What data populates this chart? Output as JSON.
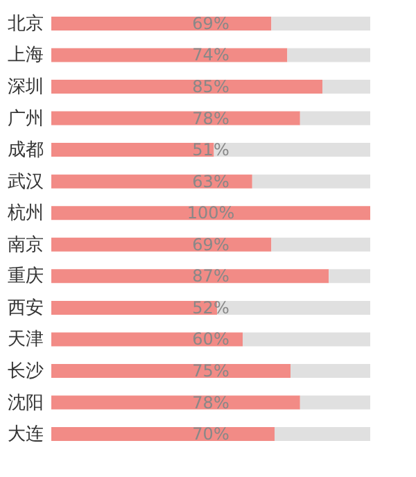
{
  "chart_data": {
    "type": "bar",
    "orientation": "horizontal",
    "stacked": true,
    "categories": [
      "北京",
      "上海",
      "深圳",
      "广州",
      "成都",
      "武汉",
      "杭州",
      "南京",
      "重庆",
      "西安",
      "天津",
      "长沙",
      "沈阳",
      "大连"
    ],
    "series": [
      {
        "color": "#f28b86",
        "values": [
          69,
          74,
          85,
          78,
          51,
          63,
          100,
          69,
          87,
          52,
          60,
          75,
          78,
          70
        ],
        "value_labels": [
          "69%",
          "74%",
          "85%",
          "78%",
          "51%",
          "63%",
          "100%",
          "69%",
          "87%",
          "52%",
          "60%",
          "75%",
          "78%",
          "70%"
        ]
      },
      {
        "color": "#e0e0e0",
        "values": [
          31,
          26,
          15,
          22,
          49,
          37,
          0,
          31,
          13,
          48,
          40,
          25,
          22,
          30
        ]
      }
    ],
    "xlim": [
      0,
      100
    ],
    "tick_labels": "y",
    "legend": false
  }
}
